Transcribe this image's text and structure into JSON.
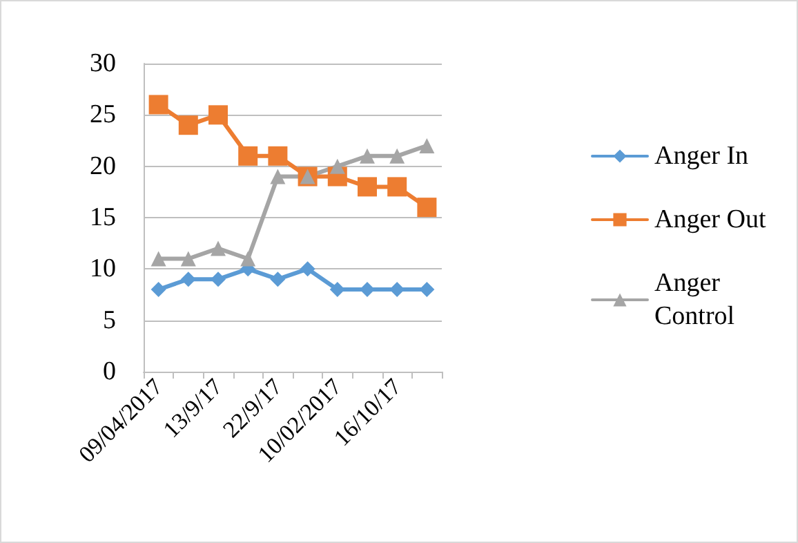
{
  "chart_data": {
    "type": "line",
    "categories": [
      "09/04/2017",
      null,
      "13/9/17",
      null,
      "22/9/17",
      null,
      "10/02/2017",
      null,
      "16/10/17",
      null
    ],
    "series": [
      {
        "name": "Anger In",
        "color": "#5b9bd5",
        "marker": "diamond",
        "values": [
          8,
          9,
          9,
          10,
          9,
          10,
          8,
          8,
          8,
          8
        ]
      },
      {
        "name": "Anger Out",
        "color": "#ed7d31",
        "marker": "square",
        "values": [
          26,
          24,
          25,
          21,
          21,
          19,
          19,
          18,
          18,
          16
        ]
      },
      {
        "name": "Anger Control",
        "color": "#a5a5a5",
        "marker": "triangle",
        "values": [
          11,
          11,
          12,
          11,
          19,
          19,
          20,
          21,
          21,
          22
        ]
      }
    ],
    "ylim": [
      0,
      30
    ],
    "yticks": [
      0,
      5,
      10,
      15,
      20,
      25,
      30
    ],
    "grid": "y",
    "legend": "right",
    "line_style": "solid"
  }
}
